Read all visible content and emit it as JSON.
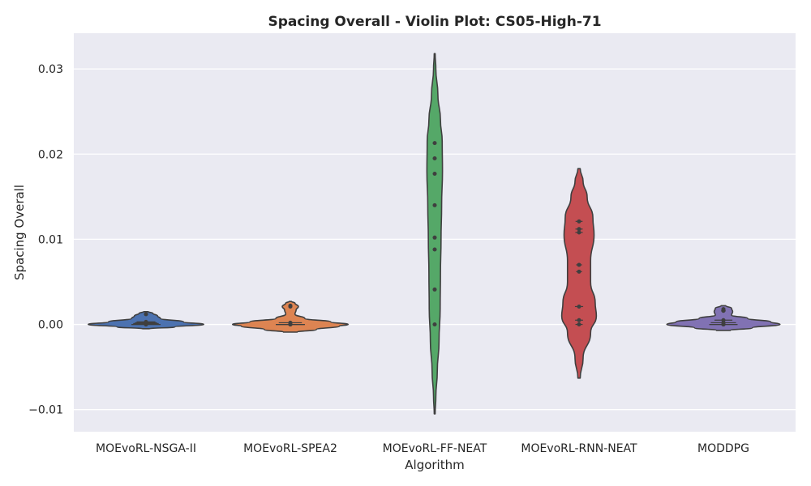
{
  "chart_data": {
    "type": "violin",
    "title": "Spacing Overall - Violin Plot: CS05-High-71",
    "xlabel": "Algorithm",
    "ylabel": "Spacing Overall",
    "ylim": [
      -0.0126,
      0.0342
    ],
    "yticks": [
      {
        "value": -0.01,
        "label": "−0.01"
      },
      {
        "value": 0.0,
        "label": "0.00"
      },
      {
        "value": 0.01,
        "label": "0.01"
      },
      {
        "value": 0.02,
        "label": "0.02"
      },
      {
        "value": 0.03,
        "label": "0.03"
      }
    ],
    "grid": true,
    "categories": [
      "MOEvoRL-NSGA-II",
      "MOEvoRL-SPEA2",
      "MOEvoRL-FF-NEAT",
      "MOEvoRL-RNN-NEAT",
      "MODDPG"
    ],
    "colors": [
      "#4c72b0",
      "#dd8452",
      "#55a868",
      "#c44e52",
      "#8172b3"
    ],
    "violins": [
      {
        "name": "MOEvoRL-NSGA-II",
        "observations": [
          0.0,
          0.0,
          0.0,
          0.0001,
          0.0002,
          0.0003,
          0.0012
        ],
        "min": -0.0005,
        "max": 0.0015,
        "profile": [
          [
            -0.0005,
            0.06
          ],
          [
            -0.0003,
            0.5
          ],
          [
            0.0,
            1.0
          ],
          [
            0.0003,
            0.65
          ],
          [
            0.0007,
            0.25
          ],
          [
            0.001,
            0.2
          ],
          [
            0.0013,
            0.12
          ],
          [
            0.0015,
            0.04
          ]
        ]
      },
      {
        "name": "MOEvoRL-SPEA2",
        "observations": [
          0.0,
          0.0,
          0.0,
          0.0,
          0.0002,
          0.0021,
          0.0022
        ],
        "min": -0.0009,
        "max": 0.0027,
        "profile": [
          [
            -0.0009,
            0.12
          ],
          [
            -0.0006,
            0.45
          ],
          [
            -0.0002,
            0.85
          ],
          [
            0.0,
            1.0
          ],
          [
            0.0003,
            0.7
          ],
          [
            0.0007,
            0.25
          ],
          [
            0.0012,
            0.08
          ],
          [
            0.0017,
            0.1
          ],
          [
            0.0021,
            0.14
          ],
          [
            0.0025,
            0.08
          ],
          [
            0.0027,
            0.02
          ]
        ]
      },
      {
        "name": "MOEvoRL-FF-NEAT",
        "observations": [
          0.0,
          0.0041,
          0.0088,
          0.0102,
          0.014,
          0.0177,
          0.0195,
          0.0213
        ],
        "min": -0.0105,
        "max": 0.0318,
        "profile": [
          [
            -0.0105,
            0.008
          ],
          [
            -0.0085,
            0.02
          ],
          [
            -0.0055,
            0.045
          ],
          [
            -0.002,
            0.075
          ],
          [
            0.002,
            0.095
          ],
          [
            0.006,
            0.1
          ],
          [
            0.01,
            0.11
          ],
          [
            0.014,
            0.12
          ],
          [
            0.018,
            0.135
          ],
          [
            0.0215,
            0.13
          ],
          [
            0.024,
            0.1
          ],
          [
            0.027,
            0.055
          ],
          [
            0.03,
            0.02
          ],
          [
            0.0318,
            0.008
          ]
        ]
      },
      {
        "name": "MOEvoRL-RNN-NEAT",
        "observations": [
          0.0,
          0.0005,
          0.0021,
          0.0062,
          0.007,
          0.0108,
          0.0112,
          0.0121
        ],
        "min": -0.0063,
        "max": 0.0183,
        "profile": [
          [
            -0.0063,
            0.02
          ],
          [
            -0.004,
            0.07
          ],
          [
            -0.001,
            0.2
          ],
          [
            0.001,
            0.3
          ],
          [
            0.0025,
            0.28
          ],
          [
            0.005,
            0.2
          ],
          [
            0.0075,
            0.2
          ],
          [
            0.0105,
            0.26
          ],
          [
            0.0125,
            0.24
          ],
          [
            0.015,
            0.14
          ],
          [
            0.0168,
            0.07
          ],
          [
            0.0183,
            0.02
          ]
        ]
      },
      {
        "name": "MODDPG",
        "observations": [
          0.0,
          0.0,
          0.0,
          0.0002,
          0.0005,
          0.0016,
          0.0018
        ],
        "min": -0.0007,
        "max": 0.0022,
        "profile": [
          [
            -0.0007,
            0.12
          ],
          [
            -0.0004,
            0.5
          ],
          [
            0.0,
            0.98
          ],
          [
            0.0003,
            0.82
          ],
          [
            0.0007,
            0.42
          ],
          [
            0.0011,
            0.14
          ],
          [
            0.0015,
            0.16
          ],
          [
            0.0019,
            0.14
          ],
          [
            0.0022,
            0.04
          ]
        ]
      }
    ]
  }
}
